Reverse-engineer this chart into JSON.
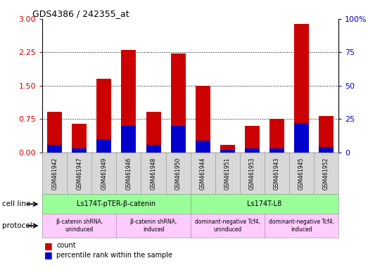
{
  "title": "GDS4386 / 242355_at",
  "samples": [
    "GSM461942",
    "GSM461947",
    "GSM461949",
    "GSM461946",
    "GSM461948",
    "GSM461950",
    "GSM461944",
    "GSM461951",
    "GSM461953",
    "GSM461943",
    "GSM461945",
    "GSM461952"
  ],
  "count_values": [
    0.92,
    0.65,
    1.65,
    2.3,
    0.92,
    2.22,
    1.5,
    0.18,
    0.6,
    0.75,
    2.88,
    0.82
  ],
  "percentile_values": [
    6,
    3,
    10,
    20,
    6,
    20,
    9,
    2,
    3,
    3,
    22,
    4
  ],
  "bar_color": "#cc0000",
  "pct_color": "#0000cc",
  "ylim_left": [
    0,
    3
  ],
  "ylim_right": [
    0,
    100
  ],
  "yticks_left": [
    0,
    0.75,
    1.5,
    2.25,
    3
  ],
  "yticks_right": [
    0,
    25,
    50,
    75,
    100
  ],
  "cell_line_groups": [
    {
      "label": "Ls174T-pTER-β-catenin",
      "start": 0,
      "end": 6,
      "color": "#99ff99"
    },
    {
      "label": "Ls174T-L8",
      "start": 6,
      "end": 12,
      "color": "#99ff99"
    }
  ],
  "protocol_groups": [
    {
      "label": "β-catenin shRNA,\nuninduced",
      "start": 0,
      "end": 3,
      "color": "#ffccff"
    },
    {
      "label": "β-catenin shRNA,\ninduced",
      "start": 3,
      "end": 6,
      "color": "#ffccff"
    },
    {
      "label": "dominant-negative Tcf4,\nuninduced",
      "start": 6,
      "end": 9,
      "color": "#ffccff"
    },
    {
      "label": "dominant-negative Tcf4,\ninduced",
      "start": 9,
      "end": 12,
      "color": "#ffccff"
    }
  ],
  "cell_line_label": "cell line",
  "protocol_label": "protocol",
  "legend_count": "count",
  "legend_pct": "percentile rank within the sample",
  "grid_color": "#000000",
  "bar_width": 0.6,
  "background_color": "#ffffff",
  "tick_label_color_left": "#cc0000",
  "tick_label_color_right": "#0000cc",
  "sample_box_color": "#d8d8d8"
}
